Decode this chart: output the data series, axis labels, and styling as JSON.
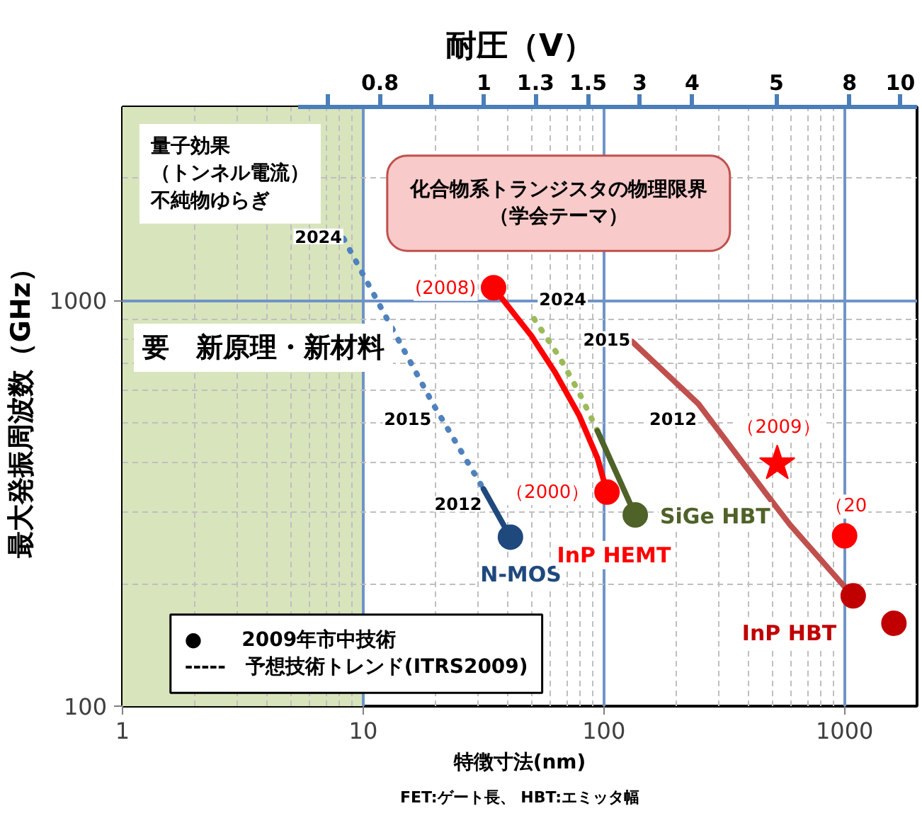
{
  "chart_data": {
    "type": "line",
    "xlabel": "特徴寸法(nm)",
    "ylabel": "最大発振周波数（GHz）",
    "x2label": "耐圧（V）",
    "log": "xy",
    "xlim": [
      1,
      2000
    ],
    "ylim": [
      100,
      3000
    ],
    "xticks": [
      1,
      {
        "value": 2,
        "label": null
      },
      {
        "value": 3,
        "label": null
      },
      {
        "value": 4,
        "label": null
      },
      {
        "value": 5,
        "label": null
      },
      {
        "value": 6,
        "label": null
      },
      {
        "value": 7,
        "label": null
      },
      {
        "value": 8,
        "label": null
      },
      {
        "value": 9,
        "label": null
      },
      10,
      {
        "value": 20,
        "label": null
      },
      {
        "value": 30,
        "label": null
      },
      {
        "value": 40,
        "label": null
      },
      {
        "value": 50,
        "label": null
      },
      {
        "value": 60,
        "label": null
      },
      {
        "value": 70,
        "label": null
      },
      {
        "value": 80,
        "label": null
      },
      {
        "value": 90,
        "label": null
      },
      100,
      {
        "value": 200,
        "label": null
      },
      {
        "value": 300,
        "label": null
      },
      {
        "value": 400,
        "label": null
      },
      {
        "value": 500,
        "label": null
      },
      {
        "value": 600,
        "label": null
      },
      {
        "value": 700,
        "label": null
      },
      {
        "value": 800,
        "label": null
      },
      {
        "value": 900,
        "label": null
      },
      1000
    ],
    "yticks": [
      100,
      {
        "value": 200,
        "label": null
      },
      {
        "value": 300,
        "label": null
      },
      {
        "value": 400,
        "label": null
      },
      {
        "value": 500,
        "label": null
      },
      {
        "value": 600,
        "label": null
      },
      {
        "value": 700,
        "label": null
      },
      {
        "value": 800,
        "label": null
      },
      {
        "value": 900,
        "label": null
      },
      1000,
      {
        "value": 2000,
        "label": null
      }
    ],
    "grid": true,
    "bands": [
      {
        "axis": "x",
        "from": 1,
        "to": 10,
        "label": "量子効果（トンネル電流）不純物ゆらぎ",
        "color": "#d8e4bc"
      }
    ],
    "series": [
      {
        "line_style": "dotted",
        "color": "#4f81bd",
        "x": [
          8.3,
          19.5,
          31.6
        ],
        "values": [
          1420,
          556,
          343
        ]
      },
      {
        "line_style": "solid",
        "color": "#1f497d",
        "x": [
          31.6,
          40.9
        ],
        "values": [
          343,
          261
        ]
      },
      {
        "type": "scatter",
        "name": "N-MOS",
        "marker": "circle",
        "color": "#1f497d",
        "x": [
          40.9
        ],
        "values": [
          261
        ]
      },
      {
        "line_style": "solid",
        "color": "#ff0000",
        "x": [
          34.8,
          50,
          62.8,
          78.9,
          94,
          103
        ],
        "values": [
          1075,
          818,
          664,
          521,
          409,
          337
        ]
      },
      {
        "type": "scatter",
        "name": "InP HEMT",
        "marker": "circle",
        "color": "#ff0000",
        "x": [
          103,
          34.8
        ],
        "values": [
          337,
          1075
        ]
      },
      {
        "line_style": "dotted",
        "color": "#9bbb59",
        "x": [
          51.3,
          65.4,
          78.9,
          94
        ],
        "values": [
          901,
          725,
          593,
          477
        ]
      },
      {
        "line_style": "solid",
        "color": "#4f6228",
        "x": [
          94,
          135
        ],
        "values": [
          477,
          296
        ]
      },
      {
        "type": "scatter",
        "name": "SiGe HBT",
        "marker": "circle",
        "color": "#4f6228",
        "x": [
          135
        ],
        "values": [
          296
        ]
      },
      {
        "line_style": "solid",
        "color": "#c0504d",
        "x": [
          131,
          247,
          472,
          593,
          1015
        ],
        "values": [
          792,
          556,
          334,
          280,
          195
        ]
      },
      {
        "type": "scatter",
        "name": "InP HBT",
        "marker": "circle",
        "color": "#c00000",
        "x": [
          1086,
          1603
        ],
        "values": [
          187,
          160
        ]
      },
      {
        "type": "scatter",
        "marker": "circle",
        "color": "#ff0000",
        "x": [
          1000
        ],
        "values": [
          263
        ]
      },
      {
        "type": "scatter",
        "marker": "star",
        "color": "#ff0000",
        "x": [
          525
        ],
        "values": [
          396
        ]
      }
    ],
    "annotations": [
      "0.8",
      "1",
      "1.3",
      "1.5",
      "3",
      "4",
      "5",
      "8",
      "10",
      {
        "text": "2024",
        "x": 8.3,
        "y": 1420
      },
      {
        "text": "2015",
        "x": 19.5,
        "y": 556
      },
      {
        "text": "2012",
        "x": 31.6,
        "y": 343
      },
      {
        "text": "(2008)",
        "x": 34.8,
        "y": 1075
      },
      {
        "text": "（2000）",
        "x": 103,
        "y": 337
      },
      {
        "text": "2024",
        "x": 51.3,
        "y": 901
      },
      {
        "text": "2015",
        "x": 131,
        "y": 792
      },
      {
        "text": "2012",
        "x": 247,
        "y": 556
      },
      {
        "text": "（2009）",
        "x": 525,
        "y": 396
      },
      {
        "text": "（20",
        "x": 1000,
        "y": 263
      },
      "要　新原理・新材料",
      "化合物系トランジスタの物理限界（学会テーマ）",
      "●　　2009年市中技術\n-----　予想技術トレンド(ITRS2009)",
      "FET:ゲート長、 HBT:エミッタ幅"
    ]
  }
}
